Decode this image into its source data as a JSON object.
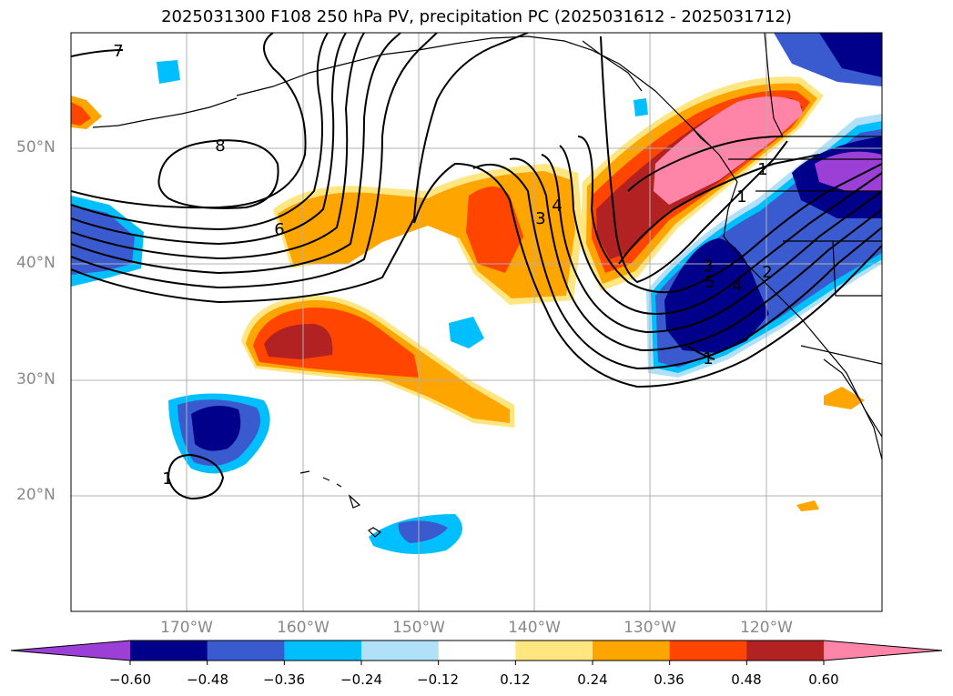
{
  "title": "2025031300 F108 250 hPa PV, precipitation PC (2025031612 - 2025031712)",
  "latitude_labels": [
    "50°N",
    "40°N",
    "30°N",
    "20°N"
  ],
  "longitude_labels": [
    "170°W",
    "160°W",
    "150°W",
    "140°W",
    "130°W",
    "120°W"
  ],
  "contour_labels": [
    "7",
    "8",
    "6",
    "3",
    "4",
    "1",
    "1",
    "1",
    "2",
    "3",
    "4",
    "5",
    "1"
  ],
  "colorbar": {
    "ticks": [
      "−0.60",
      "−0.48",
      "−0.36",
      "−0.24",
      "−0.12",
      "0.12",
      "0.24",
      "0.36",
      "0.48",
      "0.60"
    ],
    "colors": [
      "#9b3fd6",
      "#00008b",
      "#3a5bd0",
      "#00bfff",
      "#b0e0fa",
      "#ffffff",
      "#ffe680",
      "#ffa500",
      "#ff4500",
      "#b22222",
      "#ff85a8"
    ]
  }
}
